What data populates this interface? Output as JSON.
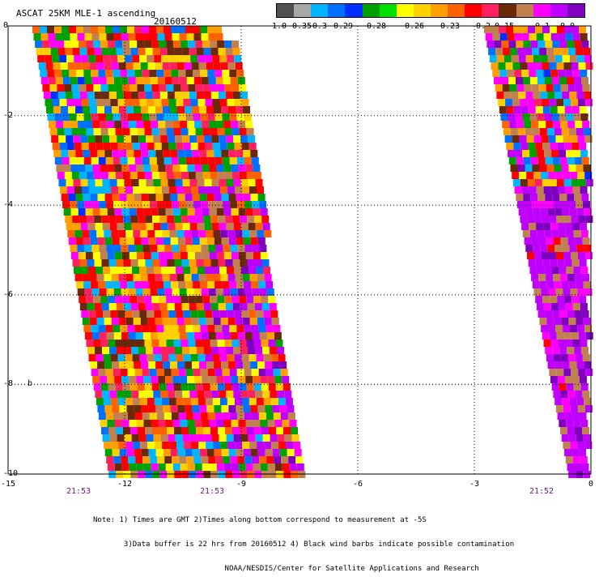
{
  "title": "ASCAT 25KM MLE-1 ascending",
  "date": "20160512",
  "colorbar": {
    "colors": [
      "#505050",
      "#a8a8a8",
      "#00b4ff",
      "#0070ff",
      "#0030ff",
      "#00a000",
      "#00e000",
      "#ffff00",
      "#ffd000",
      "#ffa000",
      "#ff6000",
      "#ff0000",
      "#ff2060",
      "#6a2a0a",
      "#c08050",
      "#ff00ff",
      "#c000ff",
      "#8000c0"
    ],
    "labels": [
      {
        "text": "-1.0"
      },
      {
        "text": "-0.35"
      },
      {
        "text": "-0.3"
      },
      {
        "text": "-0.29"
      },
      {
        "text": "-0.28"
      },
      {
        "text": "-0.26"
      },
      {
        "text": "-0.23"
      },
      {
        "text": "-0.2"
      },
      {
        "text": "-0.15"
      },
      {
        "text": "-0.1"
      },
      {
        "text": "0.0"
      }
    ]
  },
  "axes": {
    "y_ticks": [
      "0",
      "-2",
      "-4",
      "-6",
      "-8",
      "-10"
    ],
    "x_ticks": [
      "-15",
      "-12",
      "-9",
      "-6",
      "-3",
      "0"
    ],
    "y_unit": "b",
    "times": [
      {
        "text": "21:53"
      },
      {
        "text": "21:53"
      },
      {
        "text": "21:52"
      }
    ]
  },
  "notes": [
    "Note: 1) Times are GMT 2)Times along bottom correspond to measurement at -5S",
    "       3)Data buffer is 22 hrs from 20160512 4) Black wind barbs indicate possible contamination",
    "                              NOAA/NESDIS/Center for Satellite Applications and Research"
  ]
}
